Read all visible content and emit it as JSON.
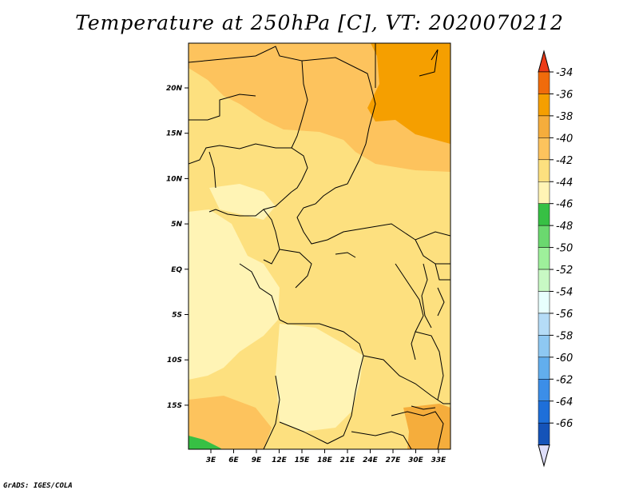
{
  "title": "Temperature at 250hPa [C], VT: 2020070212",
  "footer": "GrADS: IGES/COLA",
  "map": {
    "lon_labels": [
      "3E",
      "6E",
      "9E",
      "12E",
      "15E",
      "18E",
      "21E",
      "24E",
      "27E",
      "30E",
      "33E"
    ],
    "lat_labels": [
      "20N",
      "15N",
      "10N",
      "5N",
      "EQ",
      "5S",
      "10S",
      "15S"
    ],
    "field_colors": {
      "c36_38": "#f5ad3c",
      "c38_40": "#fdc35d",
      "c40_42": "#fde07f",
      "c42_44": "#fff4b5",
      "c44_46": "#37c044",
      "c36_orange": "#f59f00"
    },
    "boundary_color": "#000000"
  },
  "colorbar": {
    "labels": [
      "-34",
      "-36",
      "-38",
      "-40",
      "-42",
      "-44",
      "-46",
      "-48",
      "-50",
      "-52",
      "-54",
      "-56",
      "-58",
      "-60",
      "-62",
      "-64",
      "-66"
    ],
    "top_color": "#ec3a17",
    "bottom_color": "#dedefa",
    "segment_colors": [
      "#f06b0b",
      "#f59f00",
      "#f5ad3c",
      "#fdc35d",
      "#fde07f",
      "#fff4b5",
      "#37c044",
      "#6bd86f",
      "#9ef09b",
      "#c8f9c4",
      "#e8fffe",
      "#b5dcf7",
      "#8ec8f2",
      "#62aeed",
      "#3c8ee8",
      "#1e6fd9",
      "#1553b8"
    ],
    "tail_color": "#0a1a6e"
  }
}
